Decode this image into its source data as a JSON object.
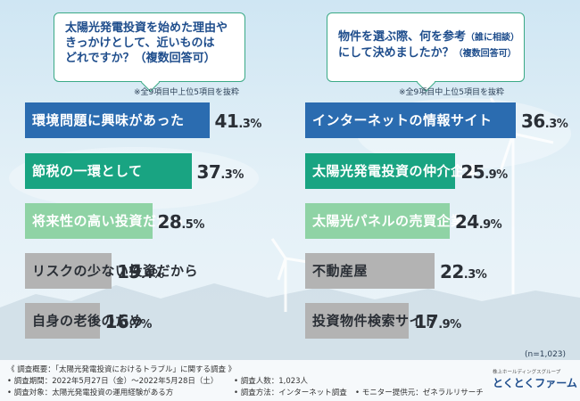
{
  "left_question": {
    "lines": [
      "太陽光発電投資を始めた理由や",
      "きっかけとして、近いものは",
      "どれですか？（複数回答可）"
    ]
  },
  "right_question": {
    "line1_main": "物件を選ぶ際、何を参考",
    "line1_small": "（誰に相談）",
    "line2_main": "にして決めましたか？",
    "line2_small": "（複数回答可）"
  },
  "note_left": "※全9項目中上位5項目を抜粋",
  "note_right": "※全9項目中上位5項目を抜粋",
  "sample_note": "(n=1,023)",
  "colors": {
    "rank1": "#2b6cb0",
    "rank2": "#19a482",
    "rank3": "#8fd3a5",
    "other": "#b3b3b3",
    "box_border": "#3aa986",
    "question_text": "#1e4d8c"
  },
  "chart_data": [
    {
      "type": "bar",
      "orientation": "horizontal",
      "categories": [
        "環境問題に興味があった",
        "節税の一環として",
        "将来性の高い投資だから",
        "リスクの少ない投資だから",
        "自身の老後のため"
      ],
      "values": [
        41.3,
        37.3,
        28.5,
        19.4,
        16.7
      ],
      "value_labels": [
        {
          "big": "41",
          "small": ".3%"
        },
        {
          "big": "37",
          "small": ".3%"
        },
        {
          "big": "28",
          "small": ".5%"
        },
        {
          "big": "19",
          "small": ".4%"
        },
        {
          "big": "16",
          "small": ".7%"
        }
      ],
      "unit": "%"
    },
    {
      "type": "bar",
      "orientation": "horizontal",
      "categories": [
        "インターネットの情報サイト",
        "太陽光発電投資の仲介企業",
        "太陽光パネルの売買企業",
        "不動産屋",
        "投資物件検索サイト"
      ],
      "values": [
        36.3,
        25.9,
        24.9,
        22.3,
        17.9
      ],
      "value_labels": [
        {
          "big": "36",
          "small": ".3%"
        },
        {
          "big": "25",
          "small": ".9%"
        },
        {
          "big": "24",
          "small": ".9%"
        },
        {
          "big": "22",
          "small": ".3%"
        },
        {
          "big": "17",
          "small": ".9%"
        }
      ],
      "unit": "%"
    }
  ],
  "footer": {
    "summary": "《 調査概要：「太陽光発電投資におけるトラブル」に関する調査 》",
    "period": "• 調査期間：2022年5月27日（金）〜2022年5月28日（土）",
    "target": "• 調査対象：太陽光発電投資の運用経験がある方",
    "count": "• 調査人数：1,023人",
    "method": "• 調査方法：インターネット調査",
    "provider": "• モニター提供元：ゼネラルリサーチ",
    "logo_sub": "株上ホールディングスグループ",
    "logo_main": "とくとくファーム"
  }
}
